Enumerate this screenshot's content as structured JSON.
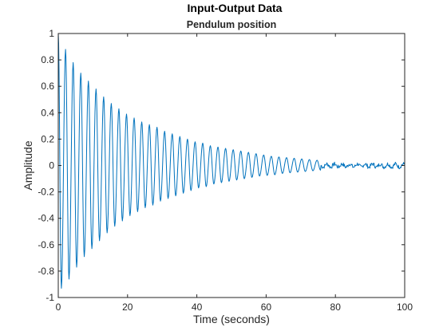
{
  "chart_data": {
    "type": "line",
    "title": "Input-Output Data",
    "subtitle": "Pendulum position",
    "xlabel": "Time (seconds)",
    "ylabel": "Amplitude",
    "xlim": [
      0,
      100
    ],
    "ylim": [
      -1,
      1
    ],
    "xticks": [
      0,
      20,
      40,
      60,
      80,
      100
    ],
    "xtick_labels": [
      "0",
      "20",
      "40",
      "60",
      "80",
      "100"
    ],
    "yticks": [
      -1,
      -0.8,
      -0.6,
      -0.4,
      -0.2,
      0,
      0.2,
      0.4,
      0.6,
      0.8,
      1
    ],
    "ytick_labels": [
      "-1",
      "-0.8",
      "-0.6",
      "-0.4",
      "-0.2",
      "0",
      "0.2",
      "0.4",
      "0.6",
      "0.8",
      "1"
    ],
    "grid": false,
    "line_color": "#0072BD",
    "series": [
      {
        "peaks_x": [
          0,
          2.1,
          4.3,
          6.5,
          8.7,
          10.9,
          13.1,
          15.3,
          17.5,
          19.7,
          21.9,
          24.1,
          26.3,
          28.5,
          30.7,
          32.9,
          35.1,
          37.3,
          39.5,
          41.7,
          43.9,
          46.1,
          48.3,
          50.5,
          52.7,
          54.9,
          57.1,
          59.3,
          61.5,
          63.7,
          65.9,
          68.1,
          70.3,
          72.5,
          74.7
        ],
        "peaks_y": [
          1.0,
          0.88,
          0.78,
          0.7,
          0.64,
          0.58,
          0.52,
          0.47,
          0.43,
          0.39,
          0.36,
          0.33,
          0.31,
          0.29,
          0.26,
          0.24,
          0.22,
          0.2,
          0.18,
          0.17,
          0.15,
          0.14,
          0.13,
          0.12,
          0.11,
          0.1,
          0.09,
          0.08,
          0.07,
          0.065,
          0.06,
          0.055,
          0.05,
          0.045,
          0.04
        ],
        "troughs_x": [
          0.9,
          3.1,
          5.3,
          7.5,
          9.7,
          11.9,
          14.1,
          16.3,
          18.5,
          20.7,
          22.9,
          25.1,
          27.3,
          29.5,
          31.7,
          33.9,
          36.1,
          38.3,
          40.5,
          42.7,
          44.9,
          47.1,
          49.3,
          51.5,
          53.7,
          55.9,
          58.1,
          60.3,
          62.5,
          64.7,
          66.9,
          69.1,
          71.3,
          73.5,
          75.7
        ],
        "troughs_y": [
          -0.93,
          -0.86,
          -0.77,
          -0.69,
          -0.63,
          -0.57,
          -0.51,
          -0.46,
          -0.42,
          -0.38,
          -0.35,
          -0.32,
          -0.3,
          -0.27,
          -0.25,
          -0.23,
          -0.21,
          -0.19,
          -0.17,
          -0.16,
          -0.14,
          -0.13,
          -0.12,
          -0.11,
          -0.1,
          -0.09,
          -0.08,
          -0.075,
          -0.07,
          -0.06,
          -0.055,
          -0.05,
          -0.045,
          -0.04,
          -0.035
        ],
        "tail_noise_amplitude": 0.025,
        "tail_x_range": [
          75,
          100
        ]
      }
    ]
  }
}
